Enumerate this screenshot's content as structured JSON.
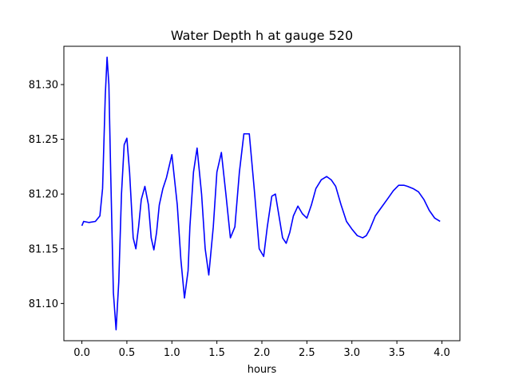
{
  "chart_data": {
    "type": "line",
    "title": "Water Depth h at gauge 520",
    "xlabel": "hours",
    "ylabel": "",
    "xlim": [
      -0.2,
      4.2
    ],
    "ylim": [
      81.066,
      81.335
    ],
    "xticks": [
      0.0,
      0.5,
      1.0,
      1.5,
      2.0,
      2.5,
      3.0,
      3.5,
      4.0
    ],
    "xtick_labels": [
      "0.0",
      "0.5",
      "1.0",
      "1.5",
      "2.0",
      "2.5",
      "3.0",
      "3.5",
      "4.0"
    ],
    "yticks": [
      81.1,
      81.15,
      81.2,
      81.25,
      81.3
    ],
    "ytick_labels": [
      "81.10",
      "81.15",
      "81.20",
      "81.25",
      "81.30"
    ],
    "grid": false,
    "colors": {
      "line": "#0000ff",
      "axes": "#000000",
      "background": "#ffffff"
    },
    "series": [
      {
        "color": "#0000ff",
        "x": [
          0.0,
          0.02,
          0.08,
          0.15,
          0.2,
          0.23,
          0.26,
          0.28,
          0.3,
          0.32,
          0.35,
          0.38,
          0.41,
          0.44,
          0.47,
          0.5,
          0.53,
          0.57,
          0.6,
          0.63,
          0.66,
          0.7,
          0.74,
          0.77,
          0.8,
          0.83,
          0.86,
          0.9,
          0.94,
          1.0,
          1.06,
          1.1,
          1.14,
          1.18,
          1.2,
          1.24,
          1.28,
          1.33,
          1.37,
          1.41,
          1.46,
          1.5,
          1.55,
          1.6,
          1.65,
          1.7,
          1.75,
          1.8,
          1.86,
          1.92,
          1.97,
          2.02,
          2.06,
          2.11,
          2.15,
          2.19,
          2.23,
          2.27,
          2.31,
          2.35,
          2.4,
          2.45,
          2.5,
          2.55,
          2.6,
          2.66,
          2.72,
          2.77,
          2.82,
          2.88,
          2.94,
          3.0,
          3.06,
          3.12,
          3.16,
          3.2,
          3.26,
          3.33,
          3.4,
          3.46,
          3.52,
          3.58,
          3.62,
          3.68,
          3.74,
          3.8,
          3.86,
          3.92,
          3.98
        ],
        "y": [
          81.171,
          81.175,
          81.174,
          81.175,
          81.18,
          81.205,
          81.29,
          81.325,
          81.3,
          81.22,
          81.11,
          81.076,
          81.12,
          81.2,
          81.245,
          81.251,
          81.22,
          81.16,
          81.15,
          81.17,
          81.195,
          81.207,
          81.19,
          81.16,
          81.149,
          81.165,
          81.19,
          81.205,
          81.215,
          81.236,
          81.19,
          81.14,
          81.105,
          81.13,
          81.17,
          81.22,
          81.242,
          81.2,
          81.15,
          81.126,
          81.17,
          81.22,
          81.238,
          81.2,
          81.16,
          81.17,
          81.22,
          81.255,
          81.255,
          81.2,
          81.15,
          81.143,
          81.17,
          81.198,
          81.2,
          81.18,
          81.16,
          81.155,
          81.165,
          81.18,
          81.189,
          81.182,
          81.178,
          81.19,
          81.205,
          81.213,
          81.216,
          81.213,
          81.207,
          81.19,
          81.175,
          81.168,
          81.162,
          81.16,
          81.162,
          81.168,
          81.18,
          81.188,
          81.196,
          81.203,
          81.208,
          81.208,
          81.207,
          81.205,
          81.202,
          81.195,
          81.185,
          81.178,
          81.175
        ]
      }
    ]
  }
}
